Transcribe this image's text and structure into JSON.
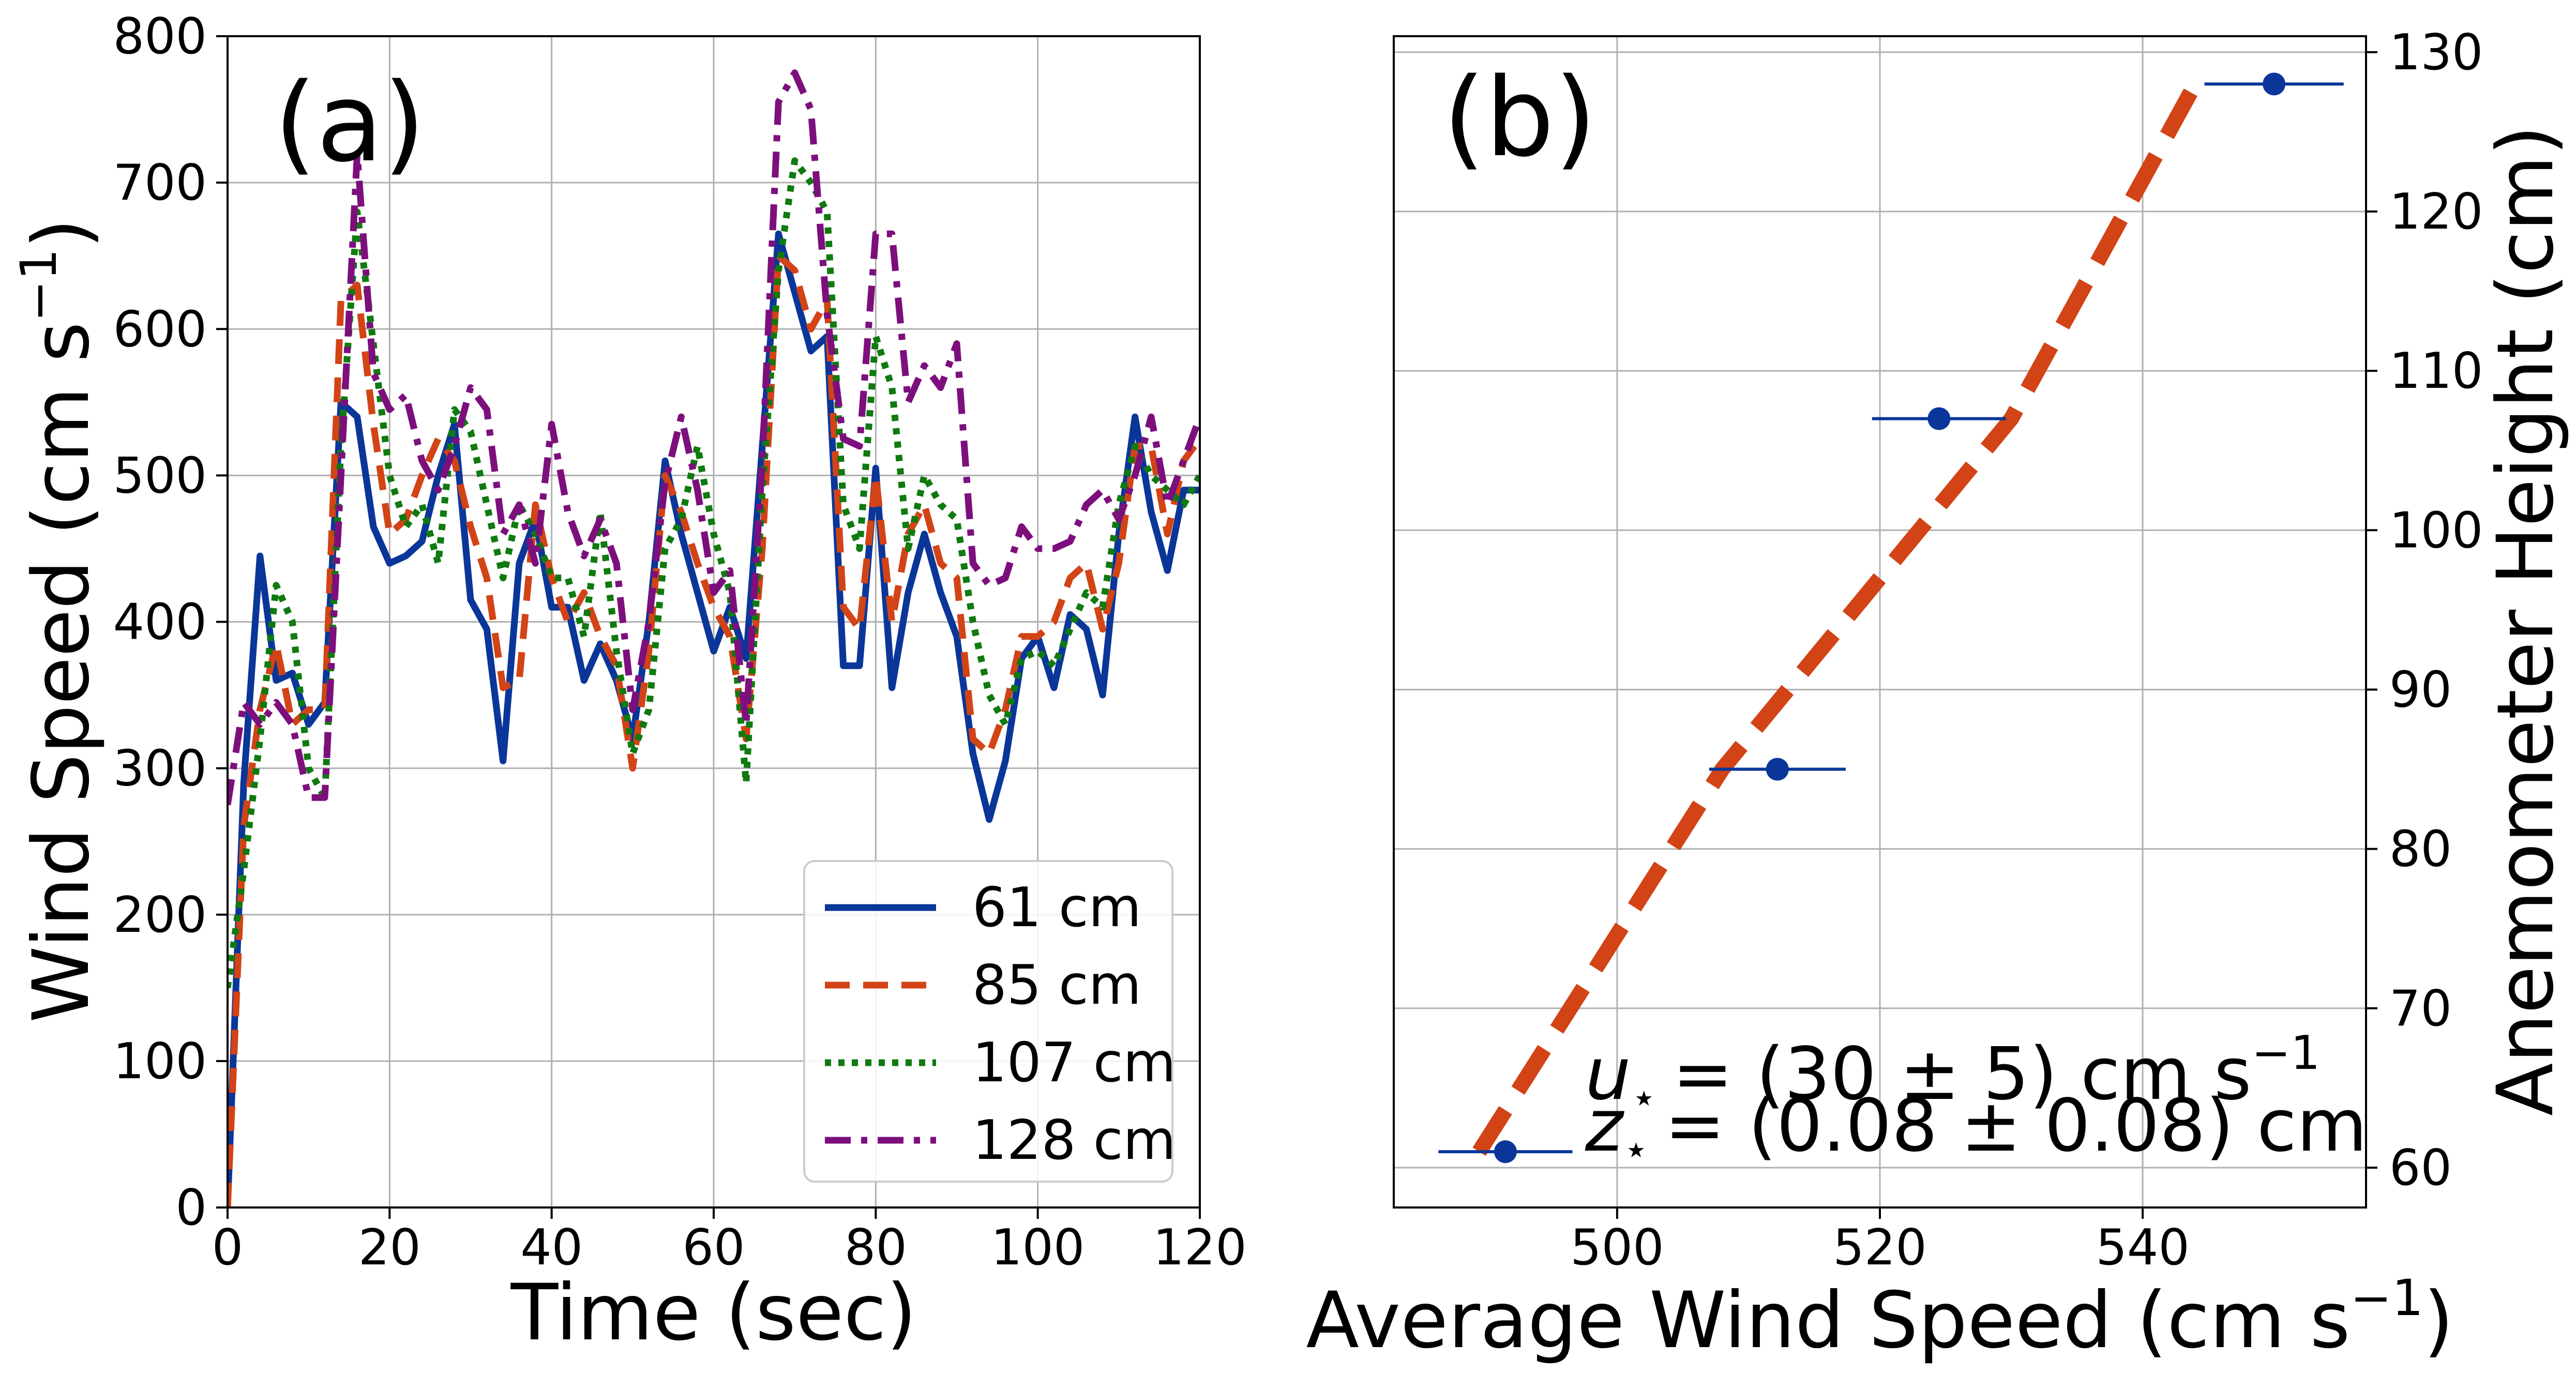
{
  "chart_data": [
    {
      "type": "line",
      "panel_label": "(a)",
      "xlabel": "Time (sec)",
      "ylabel_base": "Wind Speed (cm s",
      "ylabel_sup": "−1",
      "ylabel_end": ")",
      "xlim": [
        0,
        120
      ],
      "ylim": [
        0,
        800
      ],
      "xticks": [
        0,
        20,
        40,
        60,
        80,
        100,
        120
      ],
      "yticks": [
        0,
        100,
        200,
        300,
        400,
        500,
        600,
        700,
        800
      ],
      "xtick_labels": [
        "0",
        "20",
        "40",
        "60",
        "80",
        "100",
        "120"
      ],
      "ytick_labels": [
        "0",
        "100",
        "200",
        "300",
        "400",
        "500",
        "600",
        "700",
        "800"
      ],
      "grid": true,
      "legend_position": "bottom-right",
      "x": [
        0,
        2,
        4,
        6,
        8,
        10,
        12,
        14,
        16,
        18,
        20,
        22,
        24,
        26,
        28,
        30,
        32,
        34,
        36,
        38,
        40,
        42,
        44,
        46,
        48,
        50,
        52,
        54,
        56,
        58,
        60,
        62,
        64,
        66,
        68,
        70,
        72,
        74,
        76,
        78,
        80,
        82,
        84,
        86,
        88,
        90,
        92,
        94,
        96,
        98,
        100,
        102,
        104,
        106,
        108,
        110,
        112,
        114,
        116,
        118,
        120
      ],
      "series": [
        {
          "name": "61 cm",
          "color": "#0a3699",
          "dash": "solid",
          "values": [
            0,
            290,
            445,
            360,
            365,
            330,
            345,
            550,
            540,
            465,
            440,
            445,
            455,
            500,
            535,
            415,
            395,
            305,
            440,
            470,
            410,
            410,
            360,
            385,
            360,
            320,
            400,
            510,
            460,
            420,
            380,
            410,
            375,
            520,
            665,
            625,
            585,
            595,
            370,
            370,
            505,
            355,
            420,
            460,
            420,
            390,
            310,
            265,
            305,
            375,
            390,
            355,
            405,
            395,
            350,
            460,
            540,
            475,
            435,
            490,
            490
          ]
        },
        {
          "name": "85 cm",
          "color": "#d24316",
          "dash": "dashed",
          "values": [
            0,
            260,
            340,
            385,
            330,
            340,
            340,
            620,
            630,
            535,
            460,
            470,
            500,
            525,
            510,
            465,
            430,
            355,
            360,
            480,
            430,
            400,
            420,
            390,
            370,
            300,
            380,
            500,
            475,
            440,
            410,
            390,
            320,
            450,
            650,
            640,
            600,
            620,
            410,
            395,
            500,
            400,
            460,
            480,
            440,
            430,
            320,
            310,
            340,
            390,
            390,
            400,
            430,
            440,
            395,
            440,
            520,
            520,
            460,
            510,
            525
          ]
        },
        {
          "name": "107 cm",
          "color": "#0f7a0f",
          "dash": "dotted",
          "values": [
            150,
            230,
            320,
            425,
            400,
            300,
            280,
            520,
            680,
            590,
            500,
            465,
            480,
            440,
            545,
            530,
            480,
            430,
            480,
            460,
            430,
            430,
            390,
            475,
            380,
            310,
            340,
            450,
            470,
            520,
            460,
            420,
            290,
            490,
            640,
            715,
            700,
            680,
            480,
            450,
            595,
            560,
            450,
            500,
            480,
            470,
            400,
            350,
            330,
            375,
            380,
            370,
            395,
            420,
            410,
            480,
            520,
            500,
            490,
            480,
            500
          ]
        },
        {
          "name": "128 cm",
          "color": "#7d0f7d",
          "dash": "dashdot",
          "values": [
            275,
            345,
            330,
            345,
            330,
            280,
            280,
            500,
            720,
            570,
            545,
            555,
            510,
            490,
            520,
            560,
            545,
            460,
            480,
            440,
            535,
            475,
            445,
            470,
            440,
            340,
            400,
            495,
            540,
            490,
            420,
            435,
            330,
            510,
            755,
            775,
            750,
            610,
            525,
            520,
            665,
            665,
            550,
            575,
            560,
            590,
            440,
            425,
            430,
            465,
            450,
            450,
            455,
            480,
            490,
            470,
            500,
            540,
            480,
            510,
            540
          ]
        }
      ]
    },
    {
      "type": "scatter",
      "panel_label": "(b)",
      "xlabel_base": "Average Wind Speed (cm s",
      "xlabel_sup": "−1",
      "xlabel_end": ")",
      "ylabel": "Anemometer Height (cm)",
      "xlim": [
        483,
        557
      ],
      "ylim": [
        57.5,
        131
      ],
      "xticks": [
        500,
        520,
        540
      ],
      "yticks": [
        60,
        70,
        80,
        90,
        100,
        110,
        120,
        130
      ],
      "xtick_labels": [
        "500",
        "520",
        "540"
      ],
      "ytick_labels": [
        "60",
        "70",
        "80",
        "90",
        "100",
        "110",
        "120",
        "130"
      ],
      "y_axis_side": "right",
      "grid": true,
      "points": [
        {
          "x": 491.5,
          "y": 61,
          "xerr": 5.1
        },
        {
          "x": 512.2,
          "y": 85,
          "xerr": 5.2
        },
        {
          "x": 524.5,
          "y": 107,
          "xerr": 5.1
        },
        {
          "x": 550,
          "y": 128,
          "xerr": 5.3
        }
      ],
      "point_color": "#0a3699",
      "fit_color": "#d24316",
      "fit_line": {
        "x": [
          489.5,
          508,
          530,
          544
        ],
        "y": [
          61,
          85,
          107,
          128
        ]
      },
      "annotations": [
        {
          "sym": "u",
          "sub": "⋆",
          "text": "= (30 ± 5) cm s",
          "sup": "−1"
        },
        {
          "sym": "z",
          "sub": "⋆",
          "text": "= (0.08 ± 0.08) cm",
          "sup": ""
        }
      ]
    }
  ]
}
